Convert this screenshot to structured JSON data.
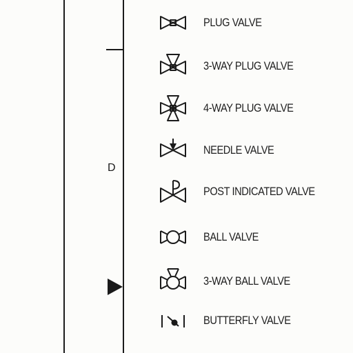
{
  "drawing": {
    "zone_letter": "D",
    "legend": [
      {
        "label": "PLUG VALVE",
        "icon": "plug-valve-icon"
      },
      {
        "label": "3-WAY PLUG VALVE",
        "icon": "three-way-plug-valve-icon"
      },
      {
        "label": "4-WAY PLUG VALVE",
        "icon": "four-way-plug-valve-icon"
      },
      {
        "label": "NEEDLE VALVE",
        "icon": "needle-valve-icon"
      },
      {
        "label": "POST INDICATED VALVE",
        "icon": "post-indicated-valve-icon"
      },
      {
        "label": "BALL VALVE",
        "icon": "ball-valve-icon"
      },
      {
        "label": "3-WAY BALL VALVE",
        "icon": "three-way-ball-valve-icon"
      },
      {
        "label": "BUTTERFLY VALVE",
        "icon": "butterfly-valve-icon"
      }
    ]
  }
}
